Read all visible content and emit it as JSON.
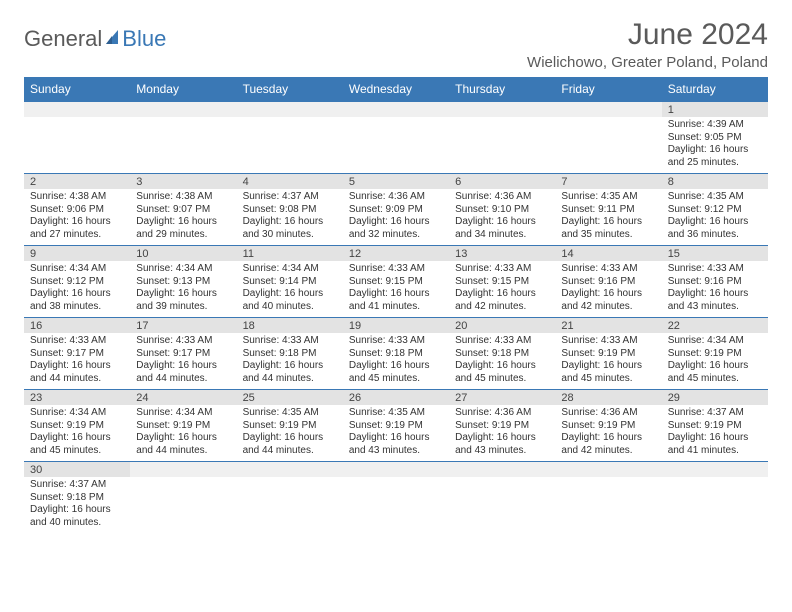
{
  "logo": {
    "text1": "General",
    "text2": "Blue"
  },
  "title": "June 2024",
  "location": "Wielichowo, Greater Poland, Poland",
  "colors": {
    "header_bg": "#3a78b5",
    "header_text": "#ffffff",
    "daynum_bg": "#e3e3e3",
    "border": "#3a78b5",
    "logo_gray": "#5a5a5a",
    "logo_blue": "#3a78b5"
  },
  "fonts": {
    "title_size": 30,
    "location_size": 15,
    "header_size": 12,
    "daynum_size": 11,
    "detail_size": 10
  },
  "weekdays": [
    "Sunday",
    "Monday",
    "Tuesday",
    "Wednesday",
    "Thursday",
    "Friday",
    "Saturday"
  ],
  "weeks": [
    [
      null,
      null,
      null,
      null,
      null,
      null,
      {
        "day": "1",
        "sunrise": "Sunrise: 4:39 AM",
        "sunset": "Sunset: 9:05 PM",
        "daylight1": "Daylight: 16 hours",
        "daylight2": "and 25 minutes."
      }
    ],
    [
      {
        "day": "2",
        "sunrise": "Sunrise: 4:38 AM",
        "sunset": "Sunset: 9:06 PM",
        "daylight1": "Daylight: 16 hours",
        "daylight2": "and 27 minutes."
      },
      {
        "day": "3",
        "sunrise": "Sunrise: 4:38 AM",
        "sunset": "Sunset: 9:07 PM",
        "daylight1": "Daylight: 16 hours",
        "daylight2": "and 29 minutes."
      },
      {
        "day": "4",
        "sunrise": "Sunrise: 4:37 AM",
        "sunset": "Sunset: 9:08 PM",
        "daylight1": "Daylight: 16 hours",
        "daylight2": "and 30 minutes."
      },
      {
        "day": "5",
        "sunrise": "Sunrise: 4:36 AM",
        "sunset": "Sunset: 9:09 PM",
        "daylight1": "Daylight: 16 hours",
        "daylight2": "and 32 minutes."
      },
      {
        "day": "6",
        "sunrise": "Sunrise: 4:36 AM",
        "sunset": "Sunset: 9:10 PM",
        "daylight1": "Daylight: 16 hours",
        "daylight2": "and 34 minutes."
      },
      {
        "day": "7",
        "sunrise": "Sunrise: 4:35 AM",
        "sunset": "Sunset: 9:11 PM",
        "daylight1": "Daylight: 16 hours",
        "daylight2": "and 35 minutes."
      },
      {
        "day": "8",
        "sunrise": "Sunrise: 4:35 AM",
        "sunset": "Sunset: 9:12 PM",
        "daylight1": "Daylight: 16 hours",
        "daylight2": "and 36 minutes."
      }
    ],
    [
      {
        "day": "9",
        "sunrise": "Sunrise: 4:34 AM",
        "sunset": "Sunset: 9:12 PM",
        "daylight1": "Daylight: 16 hours",
        "daylight2": "and 38 minutes."
      },
      {
        "day": "10",
        "sunrise": "Sunrise: 4:34 AM",
        "sunset": "Sunset: 9:13 PM",
        "daylight1": "Daylight: 16 hours",
        "daylight2": "and 39 minutes."
      },
      {
        "day": "11",
        "sunrise": "Sunrise: 4:34 AM",
        "sunset": "Sunset: 9:14 PM",
        "daylight1": "Daylight: 16 hours",
        "daylight2": "and 40 minutes."
      },
      {
        "day": "12",
        "sunrise": "Sunrise: 4:33 AM",
        "sunset": "Sunset: 9:15 PM",
        "daylight1": "Daylight: 16 hours",
        "daylight2": "and 41 minutes."
      },
      {
        "day": "13",
        "sunrise": "Sunrise: 4:33 AM",
        "sunset": "Sunset: 9:15 PM",
        "daylight1": "Daylight: 16 hours",
        "daylight2": "and 42 minutes."
      },
      {
        "day": "14",
        "sunrise": "Sunrise: 4:33 AM",
        "sunset": "Sunset: 9:16 PM",
        "daylight1": "Daylight: 16 hours",
        "daylight2": "and 42 minutes."
      },
      {
        "day": "15",
        "sunrise": "Sunrise: 4:33 AM",
        "sunset": "Sunset: 9:16 PM",
        "daylight1": "Daylight: 16 hours",
        "daylight2": "and 43 minutes."
      }
    ],
    [
      {
        "day": "16",
        "sunrise": "Sunrise: 4:33 AM",
        "sunset": "Sunset: 9:17 PM",
        "daylight1": "Daylight: 16 hours",
        "daylight2": "and 44 minutes."
      },
      {
        "day": "17",
        "sunrise": "Sunrise: 4:33 AM",
        "sunset": "Sunset: 9:17 PM",
        "daylight1": "Daylight: 16 hours",
        "daylight2": "and 44 minutes."
      },
      {
        "day": "18",
        "sunrise": "Sunrise: 4:33 AM",
        "sunset": "Sunset: 9:18 PM",
        "daylight1": "Daylight: 16 hours",
        "daylight2": "and 44 minutes."
      },
      {
        "day": "19",
        "sunrise": "Sunrise: 4:33 AM",
        "sunset": "Sunset: 9:18 PM",
        "daylight1": "Daylight: 16 hours",
        "daylight2": "and 45 minutes."
      },
      {
        "day": "20",
        "sunrise": "Sunrise: 4:33 AM",
        "sunset": "Sunset: 9:18 PM",
        "daylight1": "Daylight: 16 hours",
        "daylight2": "and 45 minutes."
      },
      {
        "day": "21",
        "sunrise": "Sunrise: 4:33 AM",
        "sunset": "Sunset: 9:19 PM",
        "daylight1": "Daylight: 16 hours",
        "daylight2": "and 45 minutes."
      },
      {
        "day": "22",
        "sunrise": "Sunrise: 4:34 AM",
        "sunset": "Sunset: 9:19 PM",
        "daylight1": "Daylight: 16 hours",
        "daylight2": "and 45 minutes."
      }
    ],
    [
      {
        "day": "23",
        "sunrise": "Sunrise: 4:34 AM",
        "sunset": "Sunset: 9:19 PM",
        "daylight1": "Daylight: 16 hours",
        "daylight2": "and 45 minutes."
      },
      {
        "day": "24",
        "sunrise": "Sunrise: 4:34 AM",
        "sunset": "Sunset: 9:19 PM",
        "daylight1": "Daylight: 16 hours",
        "daylight2": "and 44 minutes."
      },
      {
        "day": "25",
        "sunrise": "Sunrise: 4:35 AM",
        "sunset": "Sunset: 9:19 PM",
        "daylight1": "Daylight: 16 hours",
        "daylight2": "and 44 minutes."
      },
      {
        "day": "26",
        "sunrise": "Sunrise: 4:35 AM",
        "sunset": "Sunset: 9:19 PM",
        "daylight1": "Daylight: 16 hours",
        "daylight2": "and 43 minutes."
      },
      {
        "day": "27",
        "sunrise": "Sunrise: 4:36 AM",
        "sunset": "Sunset: 9:19 PM",
        "daylight1": "Daylight: 16 hours",
        "daylight2": "and 43 minutes."
      },
      {
        "day": "28",
        "sunrise": "Sunrise: 4:36 AM",
        "sunset": "Sunset: 9:19 PM",
        "daylight1": "Daylight: 16 hours",
        "daylight2": "and 42 minutes."
      },
      {
        "day": "29",
        "sunrise": "Sunrise: 4:37 AM",
        "sunset": "Sunset: 9:19 PM",
        "daylight1": "Daylight: 16 hours",
        "daylight2": "and 41 minutes."
      }
    ],
    [
      {
        "day": "30",
        "sunrise": "Sunrise: 4:37 AM",
        "sunset": "Sunset: 9:18 PM",
        "daylight1": "Daylight: 16 hours",
        "daylight2": "and 40 minutes."
      },
      null,
      null,
      null,
      null,
      null,
      null
    ]
  ]
}
